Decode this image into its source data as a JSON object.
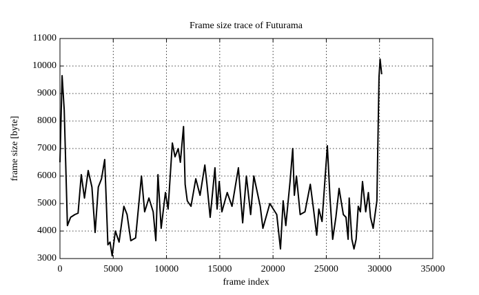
{
  "chart_data": {
    "type": "line",
    "title": "Frame size trace of Futurama",
    "xlabel": "frame index",
    "ylabel": "frame size [byte]",
    "xlim": [
      0,
      35000
    ],
    "ylim": [
      3000,
      11000
    ],
    "xticks": [
      0,
      5000,
      10000,
      15000,
      20000,
      25000,
      30000,
      35000
    ],
    "yticks": [
      3000,
      4000,
      5000,
      6000,
      7000,
      8000,
      9000,
      10000,
      11000
    ],
    "grid": true,
    "series": [
      {
        "name": "Futurama",
        "color": "#000000",
        "x": [
          0,
          200,
          400,
          700,
          1000,
          1400,
          1700,
          2000,
          2300,
          2650,
          3000,
          3300,
          3600,
          3900,
          4200,
          4500,
          4700,
          4900,
          5200,
          5550,
          6000,
          6300,
          6650,
          7100,
          7650,
          7950,
          8350,
          8750,
          9000,
          9200,
          9500,
          9900,
          10150,
          10550,
          10800,
          11100,
          11300,
          11600,
          11750,
          11950,
          12300,
          12750,
          13150,
          13600,
          13800,
          14100,
          14550,
          14750,
          14950,
          15200,
          15700,
          16150,
          16750,
          17150,
          17500,
          17900,
          18200,
          18800,
          19050,
          19700,
          20350,
          20700,
          20950,
          21200,
          21600,
          21850,
          22000,
          22200,
          22550,
          23000,
          23500,
          23800,
          24100,
          24300,
          24600,
          25100,
          25350,
          25600,
          25900,
          26200,
          26600,
          26850,
          27050,
          27150,
          27400,
          27600,
          27800,
          28000,
          28200,
          28400,
          28700,
          28950,
          29150,
          29400,
          29750,
          29950,
          30050,
          30200
        ],
        "values": [
          6500,
          9650,
          8400,
          4200,
          4500,
          4600,
          4650,
          6050,
          5200,
          6200,
          5600,
          3950,
          5600,
          5900,
          6600,
          3500,
          3600,
          3100,
          4000,
          3600,
          4900,
          4600,
          3650,
          3750,
          6000,
          4700,
          5200,
          4700,
          3650,
          6050,
          4100,
          5400,
          4800,
          7200,
          6700,
          7000,
          6500,
          7800,
          5700,
          5100,
          4900,
          5900,
          5300,
          6400,
          5700,
          4500,
          6300,
          4800,
          5800,
          4700,
          5400,
          4900,
          6300,
          4300,
          6000,
          4600,
          6000,
          4900,
          4100,
          5000,
          4600,
          3350,
          5100,
          4200,
          5800,
          7000,
          5300,
          6000,
          4600,
          4700,
          5700,
          4800,
          3850,
          4800,
          4350,
          7100,
          5200,
          3700,
          4500,
          5550,
          4600,
          4500,
          3700,
          5200,
          3700,
          3350,
          3700,
          4900,
          4700,
          5800,
          4700,
          5400,
          4500,
          4100,
          5100,
          9600,
          10250,
          9700
        ]
      }
    ]
  }
}
